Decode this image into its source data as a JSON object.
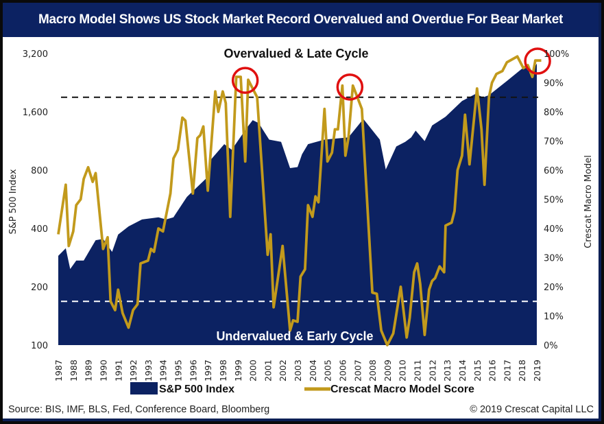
{
  "title": "Macro Model Shows US Stock Market Record Overvalued and Overdue For Bear Market",
  "colors": {
    "navy": "#0c2262",
    "gold": "#c29a1c",
    "circle": "#e01010",
    "upper_line": "#111111",
    "lower_line": "#ffffff"
  },
  "footer": {
    "source": "Source: BIS, IMF, BLS, Fed, Conference Board, Bloomberg",
    "copyright": "© 2019 Crescat Capital LLC"
  },
  "chart_data": {
    "type": "area+line",
    "title": "Macro Model Shows US Stock Market Record Overvalued and Overdue For Bear Market",
    "x_ticks": [
      "1987",
      "1988",
      "1989",
      "1990",
      "1991",
      "1992",
      "1993",
      "1994",
      "1995",
      "1996",
      "1997",
      "1998",
      "1999",
      "2000",
      "2001",
      "2002",
      "2003",
      "2004",
      "2005",
      "2006",
      "2007",
      "2008",
      "2009",
      "2010",
      "2011",
      "2012",
      "2013",
      "2014",
      "2015",
      "2016",
      "2017",
      "2018",
      "2019"
    ],
    "xlim": [
      1987,
      2019
    ],
    "left_axis": {
      "label": "S&P 500 Index",
      "scale": "log2",
      "ylim": [
        100,
        3200
      ],
      "ticks": [
        "100",
        "200",
        "400",
        "800",
        "1,600",
        "3,200"
      ],
      "tick_values": [
        100,
        200,
        400,
        800,
        1600,
        3200
      ]
    },
    "right_axis": {
      "label": "Crescat Macro Model",
      "ylim": [
        0,
        100
      ],
      "ticks": [
        "0%",
        "10%",
        "20%",
        "30%",
        "40%",
        "50%",
        "60%",
        "70%",
        "80%",
        "90%",
        "100%"
      ]
    },
    "grid": false,
    "legend": {
      "position": "bottom",
      "items": [
        "S&P 500 Index",
        "Crescat Macro Model Score"
      ]
    },
    "series": [
      {
        "name": "S&P 500 Index",
        "type": "area",
        "axis": "left",
        "points": [
          [
            1987.0,
            289
          ],
          [
            1987.5,
            316
          ],
          [
            1987.8,
            247
          ],
          [
            1988.2,
            273
          ],
          [
            1988.7,
            273
          ],
          [
            1989.5,
            348
          ],
          [
            1990.0,
            353
          ],
          [
            1990.6,
            303
          ],
          [
            1991.0,
            372
          ],
          [
            1991.7,
            410
          ],
          [
            1992.6,
            445
          ],
          [
            1993.7,
            457
          ],
          [
            1994.2,
            445
          ],
          [
            1994.7,
            457
          ],
          [
            1995.6,
            582
          ],
          [
            1996.9,
            726
          ],
          [
            1997.2,
            906
          ],
          [
            1998.1,
            1090
          ],
          [
            1998.6,
            1020
          ],
          [
            1999.6,
            1320
          ],
          [
            2000.0,
            1450
          ],
          [
            2000.4,
            1400
          ],
          [
            2001.1,
            1150
          ],
          [
            2001.9,
            1120
          ],
          [
            2002.5,
            820
          ],
          [
            2003.0,
            830
          ],
          [
            2003.3,
            966
          ],
          [
            2003.7,
            1090
          ],
          [
            2004.8,
            1150
          ],
          [
            2006.4,
            1180
          ],
          [
            2007.4,
            1470
          ],
          [
            2008.5,
            1150
          ],
          [
            2008.9,
            806
          ],
          [
            2009.6,
            1060
          ],
          [
            2010.2,
            1120
          ],
          [
            2010.6,
            1180
          ],
          [
            2010.9,
            1280
          ],
          [
            2011.5,
            1130
          ],
          [
            2012.0,
            1360
          ],
          [
            2012.9,
            1510
          ],
          [
            2014.0,
            1820
          ],
          [
            2014.9,
            1980
          ],
          [
            2015.4,
            1900
          ],
          [
            2015.8,
            1950
          ],
          [
            2017.0,
            2310
          ],
          [
            2018.0,
            2670
          ],
          [
            2018.4,
            2750
          ],
          [
            2018.7,
            2600
          ],
          [
            2019.0,
            2840
          ]
        ]
      },
      {
        "name": "Crescat Macro Model Score",
        "type": "line",
        "axis": "right",
        "points": [
          [
            1987.0,
            38
          ],
          [
            1987.5,
            55
          ],
          [
            1987.7,
            34
          ],
          [
            1988.0,
            39
          ],
          [
            1988.2,
            48
          ],
          [
            1988.5,
            50
          ],
          [
            1988.7,
            57
          ],
          [
            1989.0,
            61
          ],
          [
            1989.3,
            56
          ],
          [
            1989.5,
            59
          ],
          [
            1990.0,
            33
          ],
          [
            1990.3,
            37
          ],
          [
            1990.5,
            15
          ],
          [
            1990.8,
            12
          ],
          [
            1991.0,
            19
          ],
          [
            1991.3,
            11
          ],
          [
            1991.7,
            6
          ],
          [
            1992.0,
            12
          ],
          [
            1992.3,
            14
          ],
          [
            1992.5,
            28
          ],
          [
            1993.0,
            29
          ],
          [
            1993.2,
            33
          ],
          [
            1993.4,
            32
          ],
          [
            1993.7,
            40
          ],
          [
            1994.0,
            39
          ],
          [
            1994.5,
            52
          ],
          [
            1994.7,
            64
          ],
          [
            1995.0,
            67
          ],
          [
            1995.3,
            78
          ],
          [
            1995.5,
            77
          ],
          [
            1996.0,
            52
          ],
          [
            1996.3,
            71
          ],
          [
            1996.5,
            72
          ],
          [
            1996.7,
            75
          ],
          [
            1997.0,
            53
          ],
          [
            1997.5,
            87
          ],
          [
            1997.7,
            80
          ],
          [
            1998.0,
            87
          ],
          [
            1998.2,
            83
          ],
          [
            1998.5,
            44
          ],
          [
            1998.9,
            92
          ],
          [
            1999.2,
            92
          ],
          [
            1999.5,
            63
          ],
          [
            1999.7,
            91
          ],
          [
            2000.2,
            86
          ],
          [
            2000.3,
            85
          ],
          [
            2001.0,
            31
          ],
          [
            2001.2,
            38
          ],
          [
            2001.4,
            13
          ],
          [
            2002.0,
            34
          ],
          [
            2002.5,
            5
          ],
          [
            2002.7,
            8.5
          ],
          [
            2003.0,
            8
          ],
          [
            2003.2,
            23.5
          ],
          [
            2003.5,
            26
          ],
          [
            2003.7,
            48
          ],
          [
            2004.0,
            44
          ],
          [
            2004.2,
            51
          ],
          [
            2004.4,
            49
          ],
          [
            2004.8,
            81
          ],
          [
            2005.0,
            63
          ],
          [
            2005.3,
            66
          ],
          [
            2005.5,
            74
          ],
          [
            2005.7,
            74
          ],
          [
            2006.0,
            89
          ],
          [
            2006.2,
            65
          ],
          [
            2006.4,
            71
          ],
          [
            2006.7,
            89
          ],
          [
            2007.0,
            85
          ],
          [
            2007.3,
            81
          ],
          [
            2008.0,
            18
          ],
          [
            2008.3,
            17.6
          ],
          [
            2008.6,
            5
          ],
          [
            2009.0,
            0
          ],
          [
            2009.4,
            4
          ],
          [
            2009.9,
            20
          ],
          [
            2010.3,
            2.6
          ],
          [
            2010.5,
            9.4
          ],
          [
            2010.8,
            25
          ],
          [
            2011.0,
            28
          ],
          [
            2011.2,
            21
          ],
          [
            2011.5,
            3.5
          ],
          [
            2011.8,
            19
          ],
          [
            2012.0,
            22
          ],
          [
            2012.2,
            23
          ],
          [
            2012.5,
            27
          ],
          [
            2012.8,
            25
          ],
          [
            2012.9,
            41
          ],
          [
            2013.3,
            42
          ],
          [
            2013.5,
            46
          ],
          [
            2013.7,
            60
          ],
          [
            2014.0,
            65
          ],
          [
            2014.2,
            79
          ],
          [
            2014.5,
            62
          ],
          [
            2015.0,
            88
          ],
          [
            2015.3,
            74
          ],
          [
            2015.5,
            55
          ],
          [
            2015.8,
            85
          ],
          [
            2016.0,
            90
          ],
          [
            2016.3,
            93
          ],
          [
            2016.7,
            94
          ],
          [
            2017.0,
            97
          ],
          [
            2017.7,
            99
          ],
          [
            2018.1,
            95
          ],
          [
            2018.4,
            96
          ],
          [
            2018.7,
            92
          ],
          [
            2018.9,
            97.6
          ],
          [
            2019.3,
            97.6
          ]
        ]
      }
    ],
    "reference_lines": [
      {
        "axis": "right",
        "value": 85,
        "style": "dashed",
        "color": "#111111"
      },
      {
        "axis": "right",
        "value": 15,
        "style": "dashed",
        "color": "#ffffff"
      }
    ],
    "annotations": {
      "upper_text": "Overvalued & Late Cycle",
      "lower_text": "Undervalued & Early Cycle",
      "circles": [
        [
          1999.5,
          90.8
        ],
        [
          2006.5,
          88.5
        ],
        [
          2019.05,
          97.4
        ]
      ]
    }
  }
}
